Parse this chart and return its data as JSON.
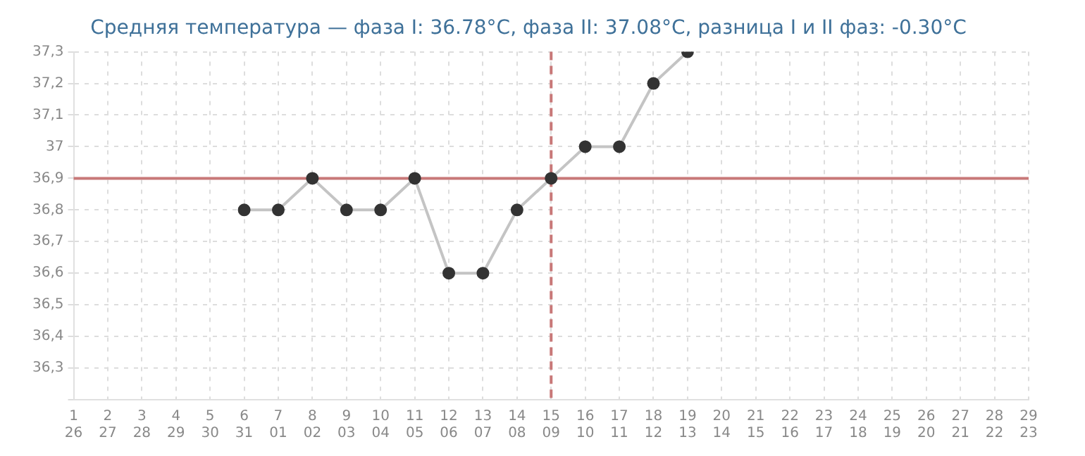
{
  "chart_data": {
    "type": "line",
    "title": "Средняя температура — фаза I: 36.78°C, фаза II: 37.08°C, разница I и II фаз: -0.30°C",
    "categories": [
      "1\n26",
      "2\n27",
      "3\n28",
      "4\n29",
      "5\n30",
      "6\n31",
      "7\n01",
      "8\n02",
      "9\n03",
      "10\n04",
      "11\n05",
      "12\n06",
      "13\n07",
      "14\n08",
      "15\n09",
      "16\n10",
      "17\n11",
      "18\n12",
      "19\n13",
      "20\n14",
      "21\n15",
      "22\n16",
      "23\n17",
      "24\n18",
      "25\n19",
      "26\n20",
      "27\n21",
      "28\n22",
      "29\n23"
    ],
    "series": [
      {
        "color": "#333333",
        "values": [
          null,
          null,
          null,
          null,
          null,
          36.8,
          36.8,
          36.9,
          36.8,
          36.8,
          36.9,
          36.6,
          36.6,
          36.8,
          36.9,
          37.0,
          37.0,
          37.2,
          37.3,
          null,
          null,
          null,
          null,
          null,
          null,
          null,
          null,
          null,
          null
        ]
      }
    ],
    "ylim": [
      36.2,
      37.3
    ],
    "yticks": [
      {
        "value": 36.2,
        "label": null
      },
      {
        "value": 36.3,
        "label": "36,3"
      },
      {
        "value": 36.4,
        "label": "36,4"
      },
      {
        "value": 36.5,
        "label": "36,5"
      },
      {
        "value": 36.6,
        "label": "36,6"
      },
      {
        "value": 36.7,
        "label": "36,7"
      },
      {
        "value": 36.8,
        "label": "36,8"
      },
      {
        "value": 36.9,
        "label": "36,9"
      },
      {
        "value": 37.0,
        "label": "37"
      },
      {
        "value": 37.1,
        "label": "37,1"
      },
      {
        "value": 37.2,
        "label": "37,2"
      },
      {
        "value": 37.3,
        "label": "37,3"
      }
    ],
    "ref_lines": [
      {
        "axis": "y",
        "value": 36.9,
        "color": "#c87878",
        "line_style": "solid"
      },
      {
        "axis": "x",
        "value": "15\n09",
        "color": "#c87878",
        "line_style": "dashed"
      }
    ],
    "grid": true,
    "marker": "circle",
    "line_style": "solid",
    "legend": false
  }
}
